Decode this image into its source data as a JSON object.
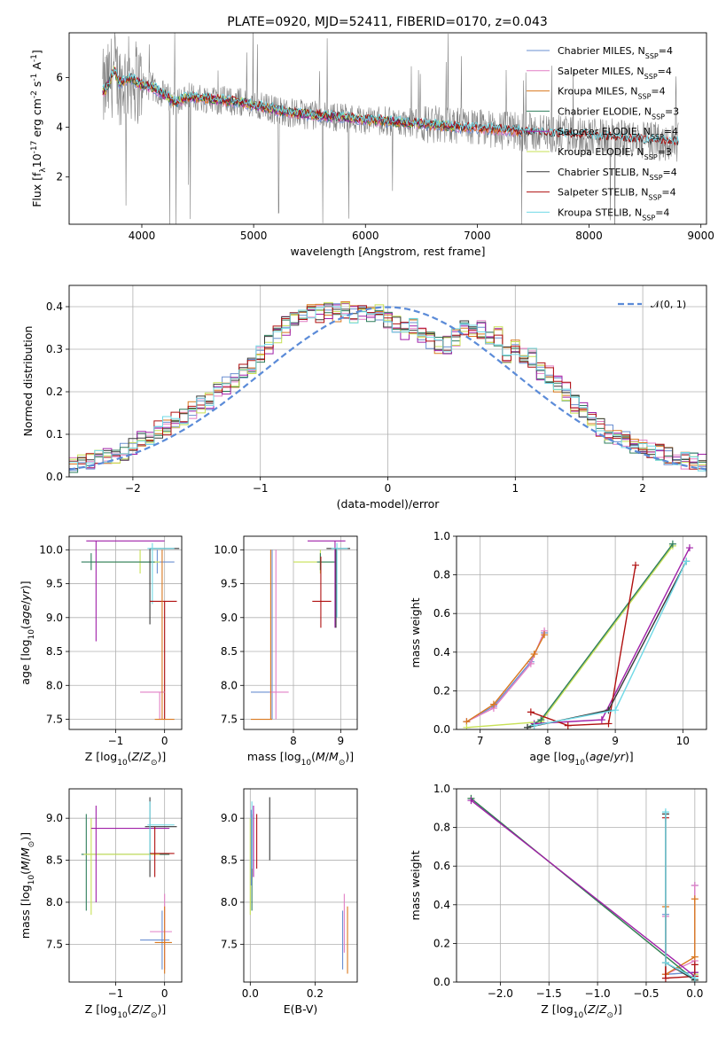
{
  "figure": {
    "title": "PLATE=0920, MJD=52411, FIBERID=0170, z=0.043"
  },
  "colors": {
    "Chabrier MILES": "#6a8fd1",
    "Salpeter MILES": "#e27fc5",
    "Kroupa MILES": "#d9781f",
    "Chabrier ELODIE": "#2e7d5c",
    "Salpeter ELODIE": "#a020a8",
    "Kroupa ELODIE": "#c7e055",
    "Chabrier STELIB": "#3a3a3a",
    "Salpeter STELIB": "#b01010",
    "Kroupa STELIB": "#6fd9e6",
    "data": "#808080",
    "gaussian": "#5b8bd8"
  },
  "chart_data": [
    {
      "id": "spectrum",
      "type": "line",
      "xlabel": "wavelength [Angstrom, rest frame]",
      "ylabel_html": "Flux [f<tspan baseline-shift='sub' font-size='9'>λ</tspan>10<tspan baseline-shift='super' font-size='9'>-17</tspan> erg cm<tspan baseline-shift='super' font-size='9'>-2</tspan> s<tspan baseline-shift='super' font-size='9'>-1</tspan> A<tspan baseline-shift='super' font-size='9'>-1</tspan>]",
      "xlim": [
        3350,
        9050
      ],
      "ylim": [
        0.1,
        7.8
      ],
      "xticks": [
        4000,
        5000,
        6000,
        7000,
        8000,
        9000
      ],
      "yticks": [
        2,
        4,
        6
      ],
      "legend_position": "top-right",
      "legend": [
        {
          "name": "Chabrier MILES",
          "label": "Chabrier MILES, N",
          "sub": "SSP",
          "tail": "=4"
        },
        {
          "name": "Salpeter MILES",
          "label": "Salpeter MILES, N",
          "sub": "SSP",
          "tail": "=4"
        },
        {
          "name": "Kroupa MILES",
          "label": "Kroupa MILES, N",
          "sub": "SSP",
          "tail": "=4"
        },
        {
          "name": "Chabrier ELODIE",
          "label": "Chabrier ELODIE, N",
          "sub": "SSP",
          "tail": "=3"
        },
        {
          "name": "Salpeter ELODIE",
          "label": "Salpeter ELODIE, N",
          "sub": "SSP",
          "tail": "=4"
        },
        {
          "name": "Kroupa ELODIE",
          "label": "Kroupa ELODIE, N",
          "sub": "SSP",
          "tail": "=3"
        },
        {
          "name": "Chabrier STELIB",
          "label": "Chabrier STELIB, N",
          "sub": "SSP",
          "tail": "=4"
        },
        {
          "name": "Salpeter STELIB",
          "label": "Salpeter STELIB, N",
          "sub": "SSP",
          "tail": "=4"
        },
        {
          "name": "Kroupa STELIB",
          "label": "Kroupa STELIB, N",
          "sub": "SSP",
          "tail": "=4"
        }
      ],
      "model_continuum": {
        "x": [
          3650,
          3700,
          3750,
          3800,
          3900,
          4000,
          4100,
          4200,
          4300,
          4400,
          4500,
          4700,
          4900,
          5100,
          5300,
          5500,
          5800,
          6000,
          6300,
          6600,
          6900,
          7200,
          7500,
          7800,
          8100,
          8400,
          8800
        ],
        "y": [
          5.4,
          5.7,
          6.3,
          5.8,
          6.0,
          5.7,
          5.6,
          5.3,
          5.0,
          5.2,
          5.2,
          5.1,
          5.0,
          4.8,
          4.6,
          4.5,
          4.4,
          4.3,
          4.2,
          4.1,
          4.0,
          3.9,
          3.8,
          3.7,
          3.6,
          3.5,
          3.4
        ]
      }
    },
    {
      "id": "residuals",
      "type": "step",
      "xlabel": "(data-model)/error",
      "ylabel": "Normed distribution",
      "xlim": [
        -2.5,
        2.5
      ],
      "ylim": [
        0,
        0.45
      ],
      "xticks": [
        -2,
        -1,
        0,
        1,
        2
      ],
      "yticks": [
        0.0,
        0.1,
        0.2,
        0.3,
        0.4
      ],
      "legend_label": "𝒩(0, 1)",
      "bin_edges_start": -2.5,
      "bin_width": 0.1,
      "base_hist": [
        0.025,
        0.03,
        0.035,
        0.04,
        0.045,
        0.05,
        0.06,
        0.075,
        0.085,
        0.095,
        0.11,
        0.12,
        0.13,
        0.14,
        0.155,
        0.17,
        0.18,
        0.2,
        0.215,
        0.23,
        0.245,
        0.265,
        0.29,
        0.31,
        0.335,
        0.355,
        0.37,
        0.38,
        0.39,
        0.385,
        0.39,
        0.385,
        0.395,
        0.38,
        0.39,
        0.385,
        0.39,
        0.37,
        0.36,
        0.345,
        0.35,
        0.33,
        0.32,
        0.31,
        0.31,
        0.33,
        0.345,
        0.335,
        0.345,
        0.33,
        0.33,
        0.29,
        0.3,
        0.285,
        0.28,
        0.25,
        0.24,
        0.22,
        0.2,
        0.17,
        0.155,
        0.13,
        0.115,
        0.1,
        0.09,
        0.085,
        0.075,
        0.07,
        0.06,
        0.055,
        0.05,
        0.045,
        0.04,
        0.035,
        0.035
      ]
    },
    {
      "id": "age-vs-Z",
      "type": "errorbar",
      "xlabel_html": "Z [log<tspan baseline-shift='sub' font-size='9'>10</tspan>(<tspan font-style='italic'>Z</tspan>/<tspan font-style='italic'>Z</tspan><tspan baseline-shift='sub' font-size='9'>⊙</tspan>)]",
      "ylabel_html": "age  [log<tspan baseline-shift='sub' font-size='9'>10</tspan>(<tspan font-style='italic'>age</tspan>/<tspan font-style='italic'>yr</tspan>)]",
      "xlim": [
        -1.95,
        0.35
      ],
      "ylim": [
        7.35,
        10.2
      ],
      "xticks": [
        -1,
        0
      ],
      "yticks": [
        7.5,
        8.0,
        8.5,
        9.0,
        9.5,
        10.0
      ],
      "points": [
        {
          "s": "Chabrier MILES",
          "x": -0.15,
          "xl": -0.5,
          "xh": 0.2,
          "y": 9.82,
          "yl": 9.65,
          "yh": 10.0
        },
        {
          "s": "Kroupa ELODIE",
          "x": -0.5,
          "xl": -1.5,
          "xh": -0.1,
          "y": 9.82,
          "yl": 9.65,
          "yh": 10.0
        },
        {
          "s": "Chabrier ELODIE",
          "x": -1.5,
          "xl": -1.7,
          "xh": -0.2,
          "y": 9.82,
          "yl": 9.7,
          "yh": 9.95
        },
        {
          "s": "Salpeter ELODIE",
          "x": -1.4,
          "xl": -1.6,
          "xh": 0.0,
          "y": 10.13,
          "yl": 8.65,
          "yh": 10.13
        },
        {
          "s": "Chabrier STELIB",
          "x": -0.3,
          "xl": -0.3,
          "xh": 0.3,
          "y": 10.02,
          "yl": 8.9,
          "yh": 10.02
        },
        {
          "s": "Kroupa STELIB",
          "x": -0.25,
          "xl": -0.35,
          "xh": 0.2,
          "y": 10.02,
          "yl": 9.2,
          "yh": 10.1
        },
        {
          "s": "Salpeter STELIB",
          "x": 0.0,
          "xl": -0.3,
          "xh": 0.25,
          "y": 9.24,
          "yl": 7.5,
          "yh": 9.24
        },
        {
          "s": "Salpeter MILES",
          "x": -0.1,
          "xl": -0.5,
          "xh": 0.0,
          "y": 7.9,
          "yl": 7.5,
          "yh": 7.9
        },
        {
          "s": "Kroupa MILES",
          "x": -0.05,
          "xl": -0.2,
          "xh": 0.2,
          "y": 7.5,
          "yl": 7.5,
          "yh": 10.0
        }
      ]
    },
    {
      "id": "age-vs-mass",
      "type": "errorbar",
      "xlabel_html": "mass [log<tspan baseline-shift='sub' font-size='9'>10</tspan>(<tspan font-style='italic'>M</tspan>/<tspan font-style='italic'>M</tspan><tspan baseline-shift='sub' font-size='9'>⊙</tspan>)]",
      "xlim": [
        6.95,
        9.35
      ],
      "ylim": [
        7.35,
        10.2
      ],
      "xticks": [
        8,
        9
      ],
      "yticks": [
        7.5,
        8.0,
        8.5,
        9.0,
        9.5,
        10.0
      ],
      "points": [
        {
          "s": "Kroupa ELODIE",
          "x": 8.57,
          "xl": 8.0,
          "xh": 8.9,
          "y": 9.82,
          "yl": 9.65,
          "yh": 10.0
        },
        {
          "s": "Chabrier ELODIE",
          "x": 8.57,
          "xl": 8.5,
          "xh": 8.9,
          "y": 9.82,
          "yl": 9.7,
          "yh": 9.95
        },
        {
          "s": "Salpeter ELODIE",
          "x": 8.88,
          "xl": 8.3,
          "xh": 9.1,
          "y": 10.13,
          "yl": 8.85,
          "yh": 10.13
        },
        {
          "s": "Chabrier STELIB",
          "x": 8.9,
          "xl": 8.7,
          "xh": 9.2,
          "y": 10.02,
          "yl": 8.85,
          "yh": 10.02
        },
        {
          "s": "Kroupa STELIB",
          "x": 8.92,
          "xl": 8.8,
          "xh": 9.15,
          "y": 10.02,
          "yl": 9.0,
          "yh": 10.1
        },
        {
          "s": "Salpeter STELIB",
          "x": 8.58,
          "xl": 8.4,
          "xh": 8.8,
          "y": 9.24,
          "yl": 8.85,
          "yh": 9.9
        },
        {
          "s": "Chabrier MILES",
          "x": 7.55,
          "xl": 7.1,
          "xh": 7.55,
          "y": 7.9,
          "yl": 7.5,
          "yh": 10.0
        },
        {
          "s": "Salpeter MILES",
          "x": 7.63,
          "xl": 7.5,
          "xh": 7.9,
          "y": 7.9,
          "yl": 7.5,
          "yh": 10.0
        },
        {
          "s": "Kroupa MILES",
          "x": 7.52,
          "xl": 7.1,
          "xh": 7.55,
          "y": 7.5,
          "yl": 7.5,
          "yh": 10.0
        }
      ]
    },
    {
      "id": "weight-vs-age",
      "type": "line",
      "xlabel_html": "age  [log<tspan baseline-shift='sub' font-size='9'>10</tspan>(<tspan font-style='italic'>age</tspan>/<tspan font-style='italic'>yr</tspan>)]",
      "ylabel": "mass weight",
      "xlim": [
        6.65,
        10.35
      ],
      "ylim": [
        0,
        1
      ],
      "xticks": [
        7,
        8,
        9,
        10
      ],
      "yticks": [
        0.0,
        0.2,
        0.4,
        0.6,
        0.8,
        1.0
      ],
      "series": [
        {
          "s": "Chabrier MILES",
          "x": [
            6.8,
            7.2,
            7.75,
            7.95
          ],
          "y": [
            0.04,
            0.12,
            0.35,
            0.5
          ]
        },
        {
          "s": "Salpeter MILES",
          "x": [
            6.8,
            7.2,
            7.75,
            7.95
          ],
          "y": [
            0.04,
            0.11,
            0.34,
            0.51
          ]
        },
        {
          "s": "Kroupa MILES",
          "x": [
            6.8,
            7.2,
            7.8,
            7.95
          ],
          "y": [
            0.04,
            0.13,
            0.39,
            0.49
          ]
        },
        {
          "s": "Kroupa ELODIE",
          "x": [
            6.8,
            7.9,
            9.85
          ],
          "y": [
            0.01,
            0.04,
            0.95
          ]
        },
        {
          "s": "Chabrier ELODIE",
          "x": [
            7.7,
            7.9,
            9.85
          ],
          "y": [
            0.01,
            0.05,
            0.96
          ]
        },
        {
          "s": "Salpeter ELODIE",
          "x": [
            7.8,
            8.8,
            10.1
          ],
          "y": [
            0.03,
            0.05,
            0.94
          ]
        },
        {
          "s": "Salpeter STELIB",
          "x": [
            7.75,
            8.3,
            8.9,
            9.3
          ],
          "y": [
            0.09,
            0.02,
            0.03,
            0.85
          ]
        },
        {
          "s": "Chabrier STELIB",
          "x": [
            7.7,
            8.9,
            10.05
          ],
          "y": [
            0.01,
            0.1,
            0.87
          ]
        },
        {
          "s": "Kroupa STELIB",
          "x": [
            7.8,
            9.0,
            10.05
          ],
          "y": [
            0.02,
            0.1,
            0.87
          ]
        }
      ]
    },
    {
      "id": "mass-vs-Z",
      "type": "errorbar",
      "xlabel_html": "Z [log<tspan baseline-shift='sub' font-size='9'>10</tspan>(<tspan font-style='italic'>Z</tspan>/<tspan font-style='italic'>Z</tspan><tspan baseline-shift='sub' font-size='9'>⊙</tspan>)]",
      "ylabel_html": "mass [log<tspan baseline-shift='sub' font-size='9'>10</tspan>(<tspan font-style='italic'>M</tspan>/<tspan font-style='italic'>M</tspan><tspan baseline-shift='sub' font-size='9'>⊙</tspan>)]",
      "xlim": [
        -1.95,
        0.35
      ],
      "ylim": [
        7.05,
        9.35
      ],
      "xticks": [
        -1,
        0
      ],
      "yticks": [
        7.5,
        8.0,
        8.5,
        9.0
      ],
      "points": [
        {
          "s": "Chabrier ELODIE",
          "x": -1.6,
          "xl": -1.7,
          "xh": 0.1,
          "y": 8.57,
          "yl": 7.9,
          "yh": 9.05
        },
        {
          "s": "Kroupa ELODIE",
          "x": -1.5,
          "xl": -1.65,
          "xh": -0.1,
          "y": 8.57,
          "yl": 7.85,
          "yh": 9.0
        },
        {
          "s": "Salpeter ELODIE",
          "x": -1.4,
          "xl": -1.5,
          "xh": 0.1,
          "y": 8.88,
          "yl": 8.0,
          "yh": 9.15
        },
        {
          "s": "Chabrier STELIB",
          "x": -0.3,
          "xl": -0.4,
          "xh": 0.25,
          "y": 8.9,
          "yl": 8.3,
          "yh": 9.25
        },
        {
          "s": "Kroupa STELIB",
          "x": -0.3,
          "xl": -0.35,
          "xh": 0.2,
          "y": 8.92,
          "yl": 8.5,
          "yh": 9.2
        },
        {
          "s": "Salpeter STELIB",
          "x": -0.2,
          "xl": -0.3,
          "xh": 0.2,
          "y": 8.58,
          "yl": 8.3,
          "yh": 8.9
        },
        {
          "s": "Chabrier MILES",
          "x": -0.05,
          "xl": -0.5,
          "xh": 0.1,
          "y": 7.55,
          "yl": 7.2,
          "yh": 7.9
        },
        {
          "s": "Salpeter MILES",
          "x": 0.0,
          "xl": -0.3,
          "xh": 0.15,
          "y": 7.65,
          "yl": 7.2,
          "yh": 8.1
        },
        {
          "s": "Kroupa MILES",
          "x": 0.0,
          "xl": -0.2,
          "xh": 0.15,
          "y": 7.52,
          "yl": 7.15,
          "yh": 7.95
        }
      ]
    },
    {
      "id": "mass-vs-ebv",
      "type": "errorbar",
      "xlabel": "E(B-V)",
      "xlim": [
        -0.02,
        0.33
      ],
      "ylim": [
        7.05,
        9.35
      ],
      "xticks": [
        0.0,
        0.2
      ],
      "yticks": [
        7.5,
        8.0,
        8.5,
        9.0
      ],
      "points": [
        {
          "s": "Kroupa ELODIE",
          "x": 0.0,
          "y": 8.57,
          "yl": 7.85,
          "yh": 9.0
        },
        {
          "s": "Chabrier ELODIE",
          "x": 0.005,
          "y": 8.57,
          "yl": 7.9,
          "yh": 9.05
        },
        {
          "s": "Salpeter ELODIE",
          "x": 0.01,
          "y": 8.88,
          "yl": 8.3,
          "yh": 9.15
        },
        {
          "s": "Kroupa STELIB",
          "x": 0.005,
          "y": 8.92,
          "yl": 8.4,
          "yh": 9.2
        },
        {
          "s": "Chabrier MILES",
          "x": 0.003,
          "y": 8.7,
          "yl": 8.2,
          "yh": 9.1
        },
        {
          "s": "Salpeter STELIB",
          "x": 0.02,
          "y": 8.58,
          "yl": 8.4,
          "yh": 9.05
        },
        {
          "s": "Chabrier STELIB",
          "x": 0.06,
          "y": 8.9,
          "yl": 8.5,
          "yh": 9.25
        },
        {
          "s": "Chabrier MILES",
          "x": 0.285,
          "y": 7.55,
          "yl": 7.2,
          "yh": 7.9
        },
        {
          "s": "Salpeter MILES",
          "x": 0.29,
          "y": 7.65,
          "yl": 7.4,
          "yh": 8.1
        },
        {
          "s": "Kroupa MILES",
          "x": 0.3,
          "y": 7.52,
          "yl": 7.15,
          "yh": 7.95
        }
      ]
    },
    {
      "id": "weight-vs-Z",
      "type": "line",
      "xlabel_html": "Z [log<tspan baseline-shift='sub' font-size='9'>10</tspan>(<tspan font-style='italic'>Z</tspan>/<tspan font-style='italic'>Z</tspan><tspan baseline-shift='sub' font-size='9'>⊙</tspan>)]",
      "ylabel": "mass weight",
      "xlim": [
        -2.45,
        0.12
      ],
      "ylim": [
        0,
        1
      ],
      "xticks": [
        -2.0,
        -1.5,
        -1.0,
        -0.5,
        0.0
      ],
      "yticks": [
        0.0,
        0.2,
        0.4,
        0.6,
        0.8,
        1.0
      ],
      "series": [
        {
          "s": "Chabrier MILES",
          "x": [
            -0.3,
            -0.3,
            0.0,
            0.0
          ],
          "y": [
            0.35,
            0.04,
            0.05,
            0.5
          ]
        },
        {
          "s": "Salpeter MILES",
          "x": [
            -0.3,
            -0.3,
            0.0,
            0.0
          ],
          "y": [
            0.34,
            0.04,
            0.11,
            0.5
          ]
        },
        {
          "s": "Kroupa MILES",
          "x": [
            -0.3,
            -0.3,
            0.0,
            0.0
          ],
          "y": [
            0.39,
            0.04,
            0.13,
            0.43
          ]
        },
        {
          "s": "Kroupa ELODIE",
          "x": [
            -2.3,
            0.0,
            0.0
          ],
          "y": [
            0.95,
            0.01,
            0.04
          ]
        },
        {
          "s": "Chabrier ELODIE",
          "x": [
            -2.3,
            0.0,
            0.0
          ],
          "y": [
            0.95,
            0.01,
            0.05
          ]
        },
        {
          "s": "Salpeter ELODIE",
          "x": [
            -2.3,
            0.0,
            0.0
          ],
          "y": [
            0.94,
            0.03,
            0.05
          ]
        },
        {
          "s": "Salpeter STELIB",
          "x": [
            -0.3,
            -0.3,
            0.0,
            0.0
          ],
          "y": [
            0.85,
            0.02,
            0.03,
            0.09
          ]
        },
        {
          "s": "Chabrier STELIB",
          "x": [
            -0.3,
            -0.3,
            0.0
          ],
          "y": [
            0.87,
            0.1,
            0.01
          ]
        },
        {
          "s": "Kroupa STELIB",
          "x": [
            -0.3,
            -0.3,
            0.0
          ],
          "y": [
            0.88,
            0.1,
            0.02
          ]
        }
      ]
    }
  ]
}
